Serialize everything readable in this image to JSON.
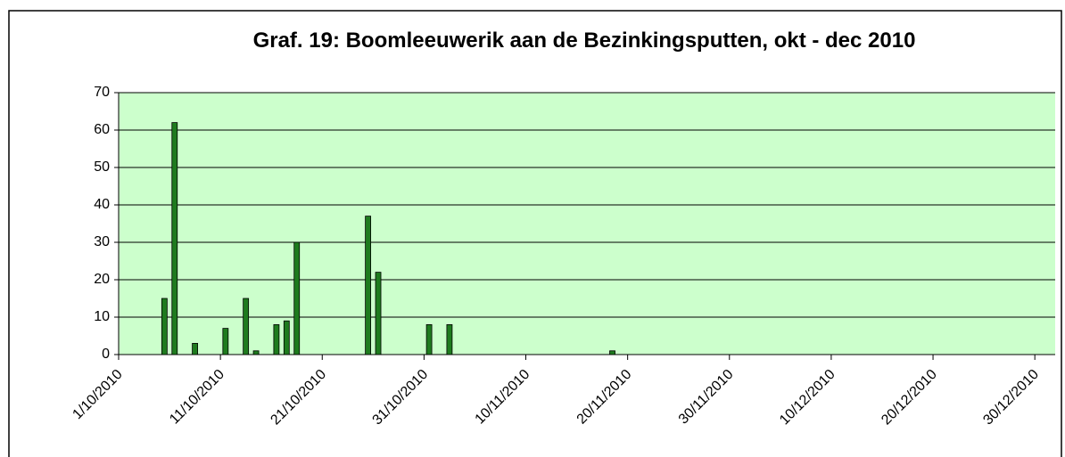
{
  "chart_data": {
    "type": "bar",
    "title": "Graf. 19: Boomleeuwerik aan de Bezinkingsputten, okt - dec 2010",
    "x": [
      "2010-10-05",
      "2010-10-06",
      "2010-10-08",
      "2010-10-11",
      "2010-10-13",
      "2010-10-14",
      "2010-10-16",
      "2010-10-17",
      "2010-10-18",
      "2010-10-25",
      "2010-10-26",
      "2010-10-31",
      "2010-11-02",
      "2010-11-18"
    ],
    "values": [
      15,
      62,
      3,
      7,
      15,
      1,
      8,
      9,
      30,
      37,
      22,
      8,
      8,
      1
    ],
    "color": "#1e7b1e",
    "xlim": [
      "2010-10-01",
      "2011-01-01"
    ],
    "xticks": [
      {
        "value": "2010-10-01",
        "label": "1/10/2010"
      },
      {
        "value": "2010-10-11",
        "label": "11/10/2010"
      },
      {
        "value": "2010-10-21",
        "label": "21/10/2010"
      },
      {
        "value": "2010-10-31",
        "label": "31/10/2010"
      },
      {
        "value": "2010-11-10",
        "label": "10/11/2010"
      },
      {
        "value": "2010-11-20",
        "label": "20/11/2010"
      },
      {
        "value": "2010-11-30",
        "label": "30/11/2010"
      },
      {
        "value": "2010-12-10",
        "label": "10/12/2010"
      },
      {
        "value": "2010-12-20",
        "label": "20/12/2010"
      },
      {
        "value": "2010-12-30",
        "label": "30/12/2010"
      }
    ],
    "ylim": [
      0,
      70
    ],
    "yticks": [
      0,
      10,
      20,
      30,
      40,
      50,
      60,
      70
    ],
    "grid": true
  }
}
